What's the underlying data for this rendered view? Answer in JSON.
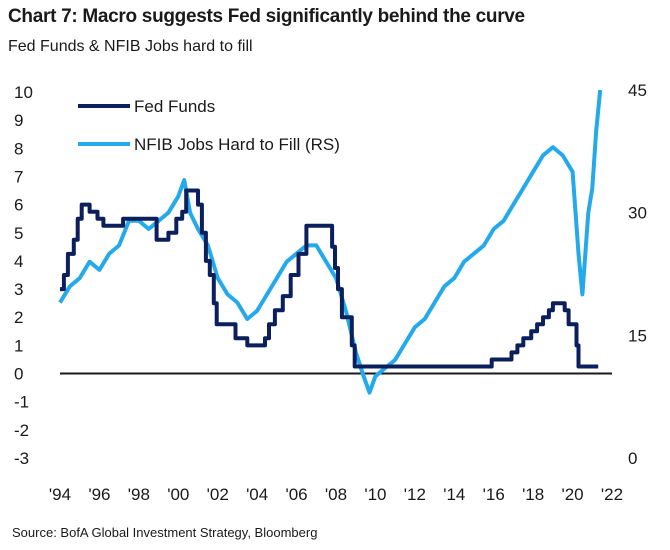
{
  "title": "Chart 7: Macro suggests Fed significantly behind the curve",
  "subtitle": "Fed Funds & NFIB Jobs hard to fill",
  "source": "Source:  BofA Global Investment Strategy, Bloomberg",
  "colors": {
    "fed_funds": "#0a1f5c",
    "nfib": "#24aaeb",
    "zero_line": "#1a1a1a"
  },
  "chart_data": {
    "type": "line",
    "xlabel": "",
    "x_ticks": [
      "'94",
      "'96",
      "'98",
      "'00",
      "'02",
      "'04",
      "'06",
      "'08",
      "'10",
      "'12",
      "'14",
      "'16",
      "'18",
      "'20",
      "'22"
    ],
    "x_range": [
      1994,
      2022
    ],
    "y_left_ticks": [
      "10",
      "9",
      "8",
      "7",
      "6",
      "5",
      "4",
      "3",
      "2",
      "1",
      "0",
      "-1",
      "-2",
      "-3"
    ],
    "y_left_range": [
      -3,
      10
    ],
    "y_right_ticks": [
      "45",
      "30",
      "15",
      "0"
    ],
    "y_right_range": [
      0,
      45
    ],
    "legend_position": "top-left",
    "series": [
      {
        "name": "Fed Funds",
        "axis": "left",
        "x": [
          1994.0,
          1994.2,
          1994.4,
          1994.7,
          1994.9,
          1995.1,
          1995.5,
          1995.9,
          1996.2,
          1997.2,
          1998.7,
          1998.9,
          1999.5,
          1999.9,
          2000.2,
          2000.4,
          2001.0,
          2001.2,
          2001.4,
          2001.6,
          2001.8,
          2001.95,
          2002.9,
          2003.5,
          2004.4,
          2004.6,
          2004.9,
          2005.3,
          2005.7,
          2006.1,
          2006.5,
          2007.6,
          2007.8,
          2007.95,
          2008.1,
          2008.3,
          2008.8,
          2008.95,
          2015.9,
          2016.9,
          2017.2,
          2017.5,
          2017.9,
          2018.2,
          2018.5,
          2018.8,
          2019.0,
          2019.6,
          2019.8,
          2020.2,
          2020.3,
          2021.3
        ],
        "values": [
          3.0,
          3.5,
          4.25,
          4.75,
          5.5,
          6.0,
          5.75,
          5.5,
          5.25,
          5.5,
          5.5,
          4.75,
          5.0,
          5.5,
          5.75,
          6.5,
          6.0,
          5.0,
          4.0,
          3.5,
          2.5,
          1.75,
          1.25,
          1.0,
          1.25,
          1.75,
          2.25,
          2.75,
          3.5,
          4.25,
          5.25,
          5.25,
          4.5,
          3.75,
          3.0,
          2.0,
          1.0,
          0.25,
          0.5,
          0.75,
          1.0,
          1.25,
          1.5,
          1.75,
          2.0,
          2.25,
          2.5,
          2.25,
          1.75,
          1.0,
          0.25,
          0.25
        ]
      },
      {
        "name": "NFIB Jobs Hard to Fill (RS)",
        "axis": "right",
        "x": [
          1994.0,
          1994.5,
          1995.0,
          1995.5,
          1996.0,
          1996.5,
          1997.0,
          1997.5,
          1998.0,
          1998.5,
          1999.0,
          1999.5,
          2000.0,
          2000.3,
          2000.6,
          2001.0,
          2001.5,
          2002.0,
          2002.5,
          2003.0,
          2003.5,
          2004.0,
          2004.5,
          2005.0,
          2005.5,
          2006.0,
          2006.5,
          2007.0,
          2007.5,
          2008.0,
          2008.5,
          2009.0,
          2009.4,
          2009.7,
          2010.0,
          2010.5,
          2011.0,
          2011.5,
          2012.0,
          2012.5,
          2013.0,
          2013.5,
          2014.0,
          2014.5,
          2015.0,
          2015.5,
          2016.0,
          2016.5,
          2017.0,
          2017.5,
          2018.0,
          2018.5,
          2019.0,
          2019.5,
          2020.0,
          2020.3,
          2020.5,
          2020.8,
          2021.0,
          2021.2,
          2021.4
        ],
        "values": [
          19,
          21,
          22,
          24,
          23,
          25,
          26,
          29,
          29,
          28,
          29,
          30,
          32,
          34,
          30,
          28,
          26,
          22,
          20,
          19,
          17,
          18,
          20,
          22,
          24,
          25,
          26,
          26,
          24,
          22,
          18,
          13,
          10,
          8,
          10,
          11,
          12,
          14,
          16,
          17,
          19,
          21,
          22,
          24,
          25,
          26,
          28,
          29,
          31,
          33,
          35,
          37,
          38,
          37,
          35,
          25,
          20,
          30,
          33,
          40,
          45
        ]
      }
    ]
  }
}
